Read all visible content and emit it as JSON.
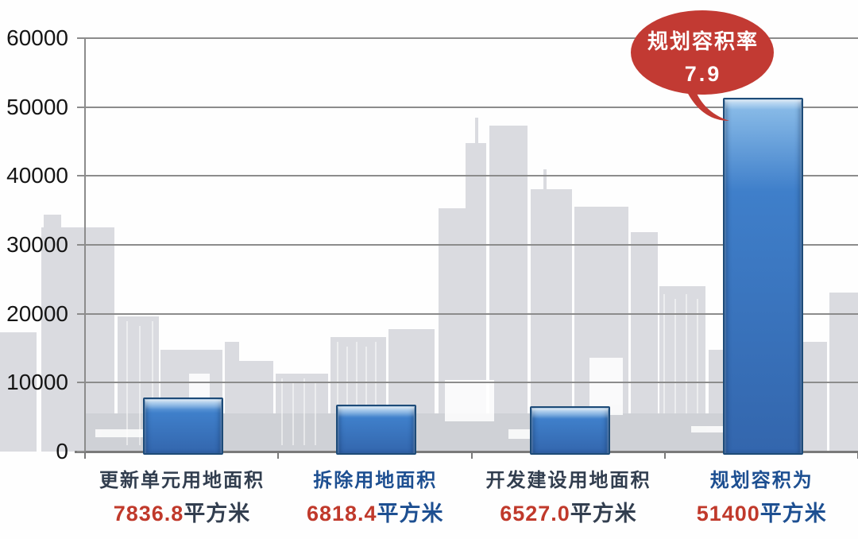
{
  "chart_data": {
    "type": "bar",
    "title": "",
    "categories": [
      "更新单元用地面积",
      "拆除用地面积",
      "开发建设用地面积",
      "规划容积为"
    ],
    "values": [
      7836.8,
      6818.4,
      6527.0,
      51400
    ],
    "value_labels": [
      "7836.8",
      "6818.4",
      "6527.0",
      "51400"
    ],
    "value_unit": "平方米",
    "category_themes": [
      "dark",
      "blue",
      "dark",
      "blue"
    ],
    "xlabel": "",
    "ylabel": "",
    "ylim": [
      0,
      60000
    ],
    "ytick_step": 10000,
    "grid": true,
    "legend": false,
    "annotation": {
      "title": "规划容积率",
      "value": "7.9",
      "target_category": "规划容积为",
      "shape": "speech-bubble"
    },
    "background": "city-skyline-silhouette"
  },
  "colors": {
    "bar_fill": "#3f7fca",
    "bar_fill_dark": "#3366ad",
    "bar_highlight": "#8fc0ea",
    "bar_border": "#1d4b78",
    "grid_line": "#8c8c8c",
    "axis_line": "#7a7a7a",
    "tick_label": "#151515",
    "category_dark": "#323e4f",
    "category_blue": "#1d4f91",
    "value_red": "#c0392b",
    "callout_red": "#c23a33",
    "callout_text": "#ffffff",
    "skyline_gray": "#dadbe0"
  }
}
